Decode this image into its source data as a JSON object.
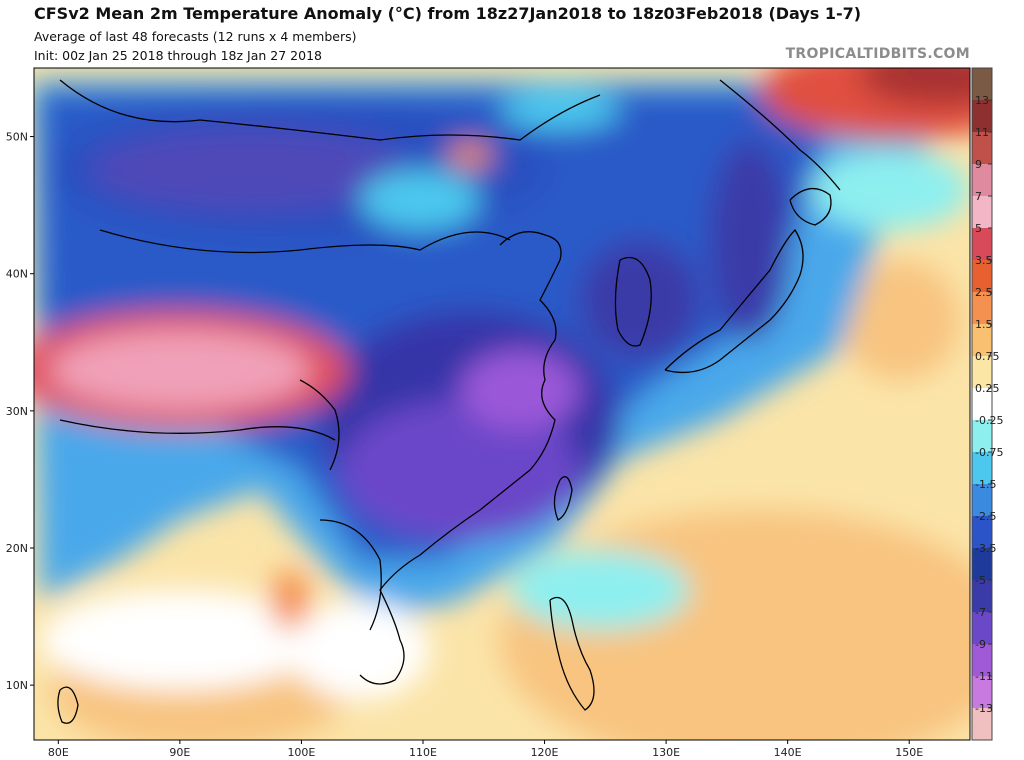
{
  "header": {
    "title": "CFSv2 Mean 2m Temperature Anomaly (°C) from 18z27Jan2018 to 18z03Feb2018 (Days 1-7)",
    "subtitle": "Average of last 48 forecasts (12 runs x 4 members)",
    "init": "Init: 00z Jan 25 2018 through 18z Jan 27 2018",
    "brand": "TROPICALTIDBITS.COM"
  },
  "map": {
    "lon_range": [
      78,
      155
    ],
    "lat_range": [
      6,
      55
    ],
    "lat_ticks": [
      {
        "value": 50,
        "label": "50N"
      },
      {
        "value": 40,
        "label": "40N"
      },
      {
        "value": 30,
        "label": "30N"
      },
      {
        "value": 20,
        "label": "20N"
      },
      {
        "value": 10,
        "label": "10N"
      }
    ],
    "lon_ticks": [
      {
        "value": 80,
        "label": "80E"
      },
      {
        "value": 90,
        "label": "90E"
      },
      {
        "value": 100,
        "label": "100E"
      },
      {
        "value": 110,
        "label": "110E"
      },
      {
        "value": 120,
        "label": "120E"
      },
      {
        "value": 130,
        "label": "130E"
      },
      {
        "value": 140,
        "label": "140E"
      },
      {
        "value": 150,
        "label": "150E"
      }
    ]
  },
  "colorbar": {
    "labels": [
      "13",
      "11",
      "9",
      "7",
      "5",
      "3.5",
      "2.5",
      "1.5",
      "0.75",
      "0.25",
      "-0.25",
      "-0.75",
      "-1.5",
      "-2.5",
      "-3.5",
      "-5",
      "-7",
      "-9",
      "-11",
      "-13"
    ],
    "colors": [
      "#7a5a44",
      "#8f3030",
      "#c0504a",
      "#e08aa0",
      "#f2b6c6",
      "#d84a5a",
      "#e86030",
      "#f49050",
      "#f8c070",
      "#fbe6a6",
      "#ffffff",
      "#8eefef",
      "#4cc8ee",
      "#3a8ae0",
      "#2a54c8",
      "#1e3a9a",
      "#3a3aa8",
      "#6a48c8",
      "#a05ad8",
      "#c87ae0",
      "#f0c0c0"
    ]
  }
}
